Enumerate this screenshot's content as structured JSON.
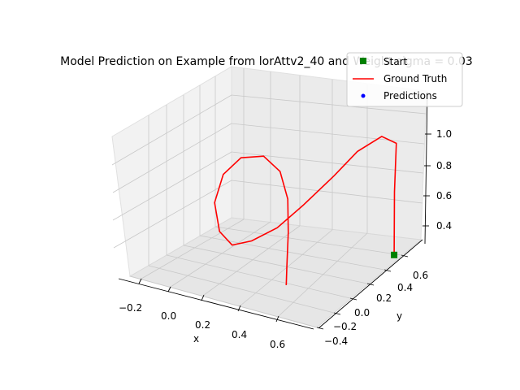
{
  "chart_data": {
    "type": "line",
    "title": "Model Prediction on Example from lorAttv2_40 and Weight sigma = 0.03",
    "xlabel": "x",
    "ylabel": "y",
    "zlabel": "",
    "x_ticks": [
      "−0.2",
      "0.0",
      "0.2",
      "0.4",
      "0.6"
    ],
    "y_ticks": [
      "−0.4",
      "−0.2",
      "0.0",
      "0.2",
      "0.4",
      "0.6"
    ],
    "z_ticks": [
      "0.4",
      "0.6",
      "0.8",
      "1.0"
    ],
    "grid": true,
    "legend_position": "top-right",
    "legend": [
      {
        "label": "Start",
        "marker": "square",
        "color": "#008000"
      },
      {
        "label": "Ground Truth",
        "marker": "line",
        "color": "#ff0000"
      },
      {
        "label": "Predictions",
        "marker": "dot",
        "color": "#0000ff"
      }
    ],
    "series": [
      {
        "name": "Ground Truth",
        "color": "#ff0000",
        "points": [
          [
            0.55,
            0.45,
            0.36
          ],
          [
            0.55,
            0.45,
            0.78
          ],
          [
            0.48,
            0.62,
            1.0
          ],
          [
            0.4,
            0.62,
            1.02
          ],
          [
            0.3,
            0.55,
            0.92
          ],
          [
            0.22,
            0.45,
            0.78
          ],
          [
            0.12,
            0.3,
            0.62
          ],
          [
            0.05,
            0.15,
            0.52
          ],
          [
            -0.02,
            0.0,
            0.48
          ],
          [
            -0.08,
            -0.1,
            0.48
          ],
          [
            -0.14,
            -0.12,
            0.56
          ],
          [
            -0.2,
            -0.05,
            0.7
          ],
          [
            -0.2,
            0.05,
            0.84
          ],
          [
            -0.15,
            0.15,
            0.92
          ],
          [
            -0.05,
            0.2,
            0.94
          ],
          [
            0.05,
            0.18,
            0.88
          ],
          [
            0.13,
            0.1,
            0.76
          ],
          [
            0.18,
            0.0,
            0.6
          ],
          [
            0.22,
            -0.1,
            0.44
          ],
          [
            0.24,
            -0.15,
            0.34
          ]
        ]
      }
    ],
    "start_point": [
      0.55,
      0.45,
      0.36
    ],
    "predictions": []
  }
}
